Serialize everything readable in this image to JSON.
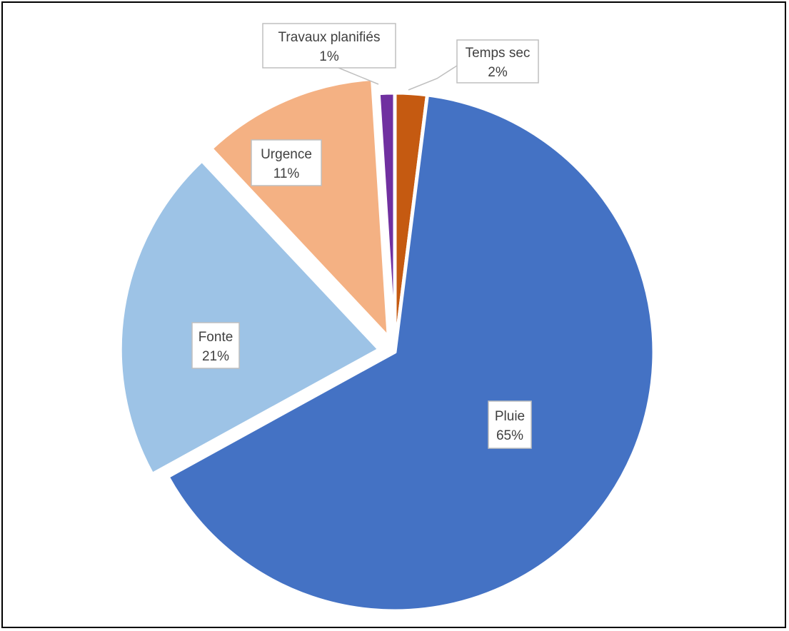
{
  "chart_data": {
    "type": "pie",
    "title": "",
    "slices": [
      {
        "name": "Temps sec",
        "value": 2,
        "label": "2%",
        "color": "#C55A11",
        "exploded": false
      },
      {
        "name": "Pluie",
        "value": 65,
        "label": "65%",
        "color": "#4472C4",
        "exploded": false
      },
      {
        "name": "Fonte",
        "value": 21,
        "label": "21%",
        "color": "#9DC3E6",
        "exploded": true
      },
      {
        "name": "Urgence",
        "value": 11,
        "label": "11%",
        "color": "#F4B183",
        "exploded": true
      },
      {
        "name": "Travaux planifiés",
        "value": 1,
        "label": "1%",
        "color": "#7030A0",
        "exploded": false
      }
    ],
    "legend": "none",
    "data_labels": "category name and percentage, boxed with leader lines for small slices"
  }
}
